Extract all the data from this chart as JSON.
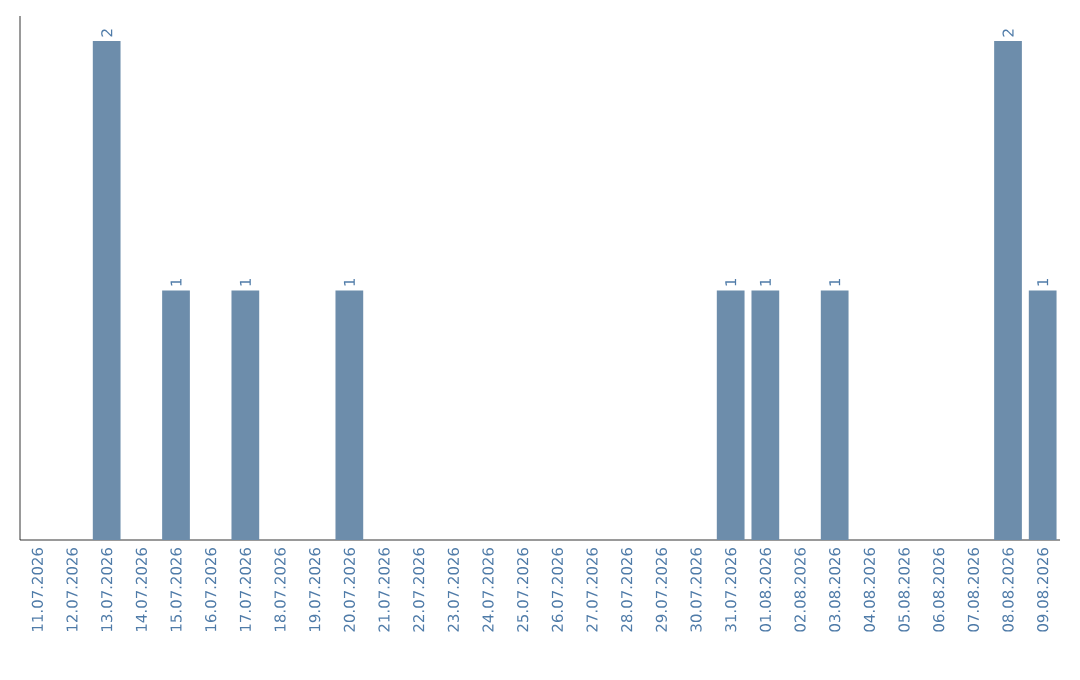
{
  "chart_data": {
    "type": "bar",
    "categories": [
      "11.07.2026",
      "12.07.2026",
      "13.07.2026",
      "14.07.2026",
      "15.07.2026",
      "16.07.2026",
      "17.07.2026",
      "18.07.2026",
      "19.07.2026",
      "20.07.2026",
      "21.07.2026",
      "22.07.2026",
      "23.07.2026",
      "24.07.2026",
      "25.07.2026",
      "26.07.2026",
      "27.07.2026",
      "28.07.2026",
      "29.07.2026",
      "30.07.2026",
      "31.07.2026",
      "01.08.2026",
      "02.08.2026",
      "03.08.2026",
      "04.08.2026",
      "05.08.2026",
      "06.08.2026",
      "07.08.2026",
      "08.08.2026",
      "09.08.2026"
    ],
    "values": [
      0,
      0,
      2,
      0,
      1,
      0,
      1,
      0,
      0,
      1,
      0,
      0,
      0,
      0,
      0,
      0,
      0,
      0,
      0,
      0,
      1,
      1,
      0,
      1,
      0,
      0,
      0,
      0,
      2,
      1
    ],
    "value_labels": [
      null,
      null,
      "2",
      null,
      "1",
      null,
      "1",
      null,
      null,
      "1",
      null,
      null,
      null,
      null,
      null,
      null,
      null,
      null,
      null,
      null,
      "1",
      "1",
      null,
      "1",
      null,
      null,
      null,
      null,
      "2",
      "1"
    ],
    "color": "#6d8dab"
  }
}
